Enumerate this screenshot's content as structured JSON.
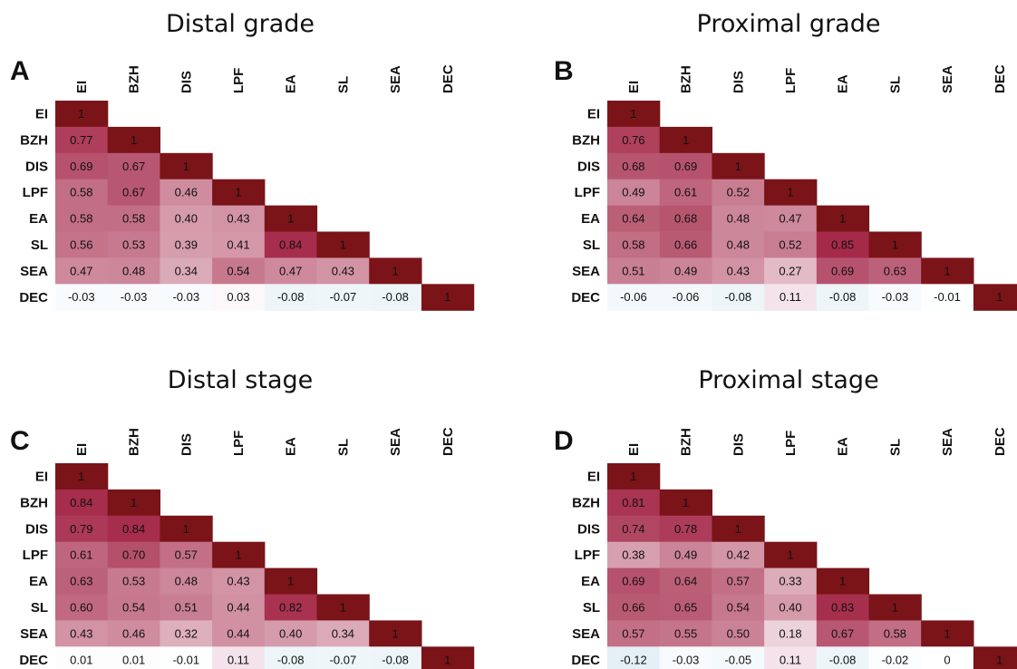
{
  "chart_data": [
    {
      "type": "heatmap",
      "title": "Distal grade",
      "panel_label": "A",
      "variables": [
        "EI",
        "BZH",
        "DIS",
        "LPF",
        "EA",
        "SL",
        "SEA",
        "DEC"
      ],
      "matrix": [
        [
          "1"
        ],
        [
          "0.77",
          "1"
        ],
        [
          "0.69",
          "0.67",
          "1"
        ],
        [
          "0.58",
          "0.67",
          "0.46",
          "1"
        ],
        [
          "0.58",
          "0.58",
          "0.40",
          "0.43",
          "1"
        ],
        [
          "0.56",
          "0.53",
          "0.39",
          "0.41",
          "0.84",
          "1"
        ],
        [
          "0.47",
          "0.48",
          "0.34",
          "0.54",
          "0.47",
          "0.43",
          "1"
        ],
        [
          "-0.03",
          "-0.03",
          "-0.03",
          "0.03",
          "-0.08",
          "-0.07",
          "-0.08",
          "1"
        ]
      ]
    },
    {
      "type": "heatmap",
      "title": "Proximal grade",
      "panel_label": "B",
      "variables": [
        "EI",
        "BZH",
        "DIS",
        "LPF",
        "EA",
        "SL",
        "SEA",
        "DEC"
      ],
      "matrix": [
        [
          "1"
        ],
        [
          "0.76",
          "1"
        ],
        [
          "0.68",
          "0.69",
          "1"
        ],
        [
          "0.49",
          "0.61",
          "0.52",
          "1"
        ],
        [
          "0.64",
          "0.68",
          "0.48",
          "0.47",
          "1"
        ],
        [
          "0.58",
          "0.66",
          "0.48",
          "0.52",
          "0.85",
          "1"
        ],
        [
          "0.51",
          "0.49",
          "0.43",
          "0.27",
          "0.69",
          "0.63",
          "1"
        ],
        [
          "-0.06",
          "-0.06",
          "-0.08",
          "0.11",
          "-0.08",
          "-0.03",
          "-0.01",
          "1"
        ]
      ]
    },
    {
      "type": "heatmap",
      "title": "Distal stage",
      "panel_label": "C",
      "variables": [
        "EI",
        "BZH",
        "DIS",
        "LPF",
        "EA",
        "SL",
        "SEA",
        "DEC"
      ],
      "matrix": [
        [
          "1"
        ],
        [
          "0.84",
          "1"
        ],
        [
          "0.79",
          "0.84",
          "1"
        ],
        [
          "0.61",
          "0.70",
          "0.57",
          "1"
        ],
        [
          "0.63",
          "0.53",
          "0.48",
          "0.43",
          "1"
        ],
        [
          "0.60",
          "0.54",
          "0.51",
          "0.44",
          "0.82",
          "1"
        ],
        [
          "0.43",
          "0.46",
          "0.32",
          "0.44",
          "0.40",
          "0.34",
          "1"
        ],
        [
          "0.01",
          "0.01",
          "-0.01",
          "0.11",
          "-0.08",
          "-0.07",
          "-0.08",
          "1"
        ]
      ]
    },
    {
      "type": "heatmap",
      "title": "Proximal stage",
      "panel_label": "D",
      "variables": [
        "EI",
        "BZH",
        "DIS",
        "LPF",
        "EA",
        "SL",
        "SEA",
        "DEC"
      ],
      "matrix": [
        [
          "1"
        ],
        [
          "0.81",
          "1"
        ],
        [
          "0.74",
          "0.78",
          "1"
        ],
        [
          "0.38",
          "0.49",
          "0.42",
          "1"
        ],
        [
          "0.69",
          "0.64",
          "0.57",
          "0.33",
          "1"
        ],
        [
          "0.66",
          "0.65",
          "0.54",
          "0.40",
          "0.83",
          "1"
        ],
        [
          "0.57",
          "0.55",
          "0.50",
          "0.18",
          "0.67",
          "0.58",
          "1"
        ],
        [
          "-0.12",
          "-0.03",
          "-0.05",
          "0.11",
          "-0.08",
          "-0.02",
          "0",
          "1"
        ]
      ]
    }
  ],
  "colors": {
    "diagonal": "#7a1418",
    "strong_positive": "#a52a4a",
    "weak_positive": "#f5e6ec",
    "negative": "#e4f0f6",
    "text": "#111111"
  },
  "color_scale_range": [
    -1,
    1
  ],
  "layout": "2x2 grid, lower-triangular correlation matrices"
}
